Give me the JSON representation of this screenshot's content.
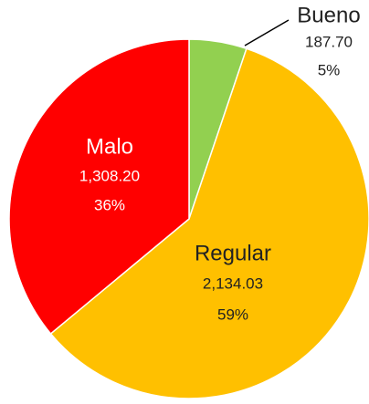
{
  "chart_data": {
    "type": "pie",
    "categories": [
      "Bueno",
      "Regular",
      "Malo"
    ],
    "values": [
      187.7,
      2134.03,
      1308.2
    ],
    "value_labels": [
      "187.70",
      "2,134.03",
      "1,308.20"
    ],
    "percent_labels": [
      "5%",
      "59%",
      "36%"
    ],
    "colors": [
      "#92d050",
      "#ffc000",
      "#ff0000"
    ],
    "label_colors": [
      "#222222",
      "#222222",
      "#ffffff"
    ]
  }
}
